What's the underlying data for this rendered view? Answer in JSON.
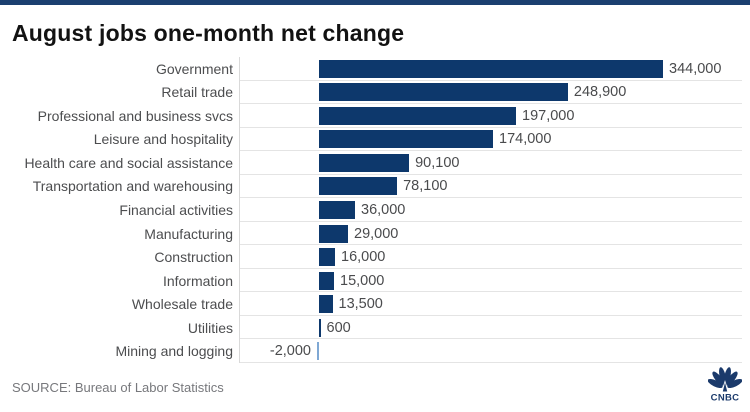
{
  "title": "August jobs one-month net change",
  "footer": {
    "source": "SOURCE: Bureau of Labor Statistics",
    "logo_text": "CNBC"
  },
  "icons": {
    "cnbc_logo": "cnbc-peacock-icon"
  },
  "colors": {
    "accent_navy": "#1b3f70",
    "bar_navy": "#0d386c",
    "negative_bar_blue": "#7fa8d4",
    "label_gray": "#4c4d4f",
    "grid_gray": "#e4e4e4",
    "source_gray": "#77787c"
  },
  "chart_data": {
    "type": "bar",
    "orientation": "horizontal",
    "title": "August jobs one-month net change",
    "categories": [
      "Government",
      "Retail trade",
      "Professional and business svcs",
      "Leisure and hospitality",
      "Health care and social assistance",
      "Transportation and warehousing",
      "Financial activities",
      "Manufacturing",
      "Construction",
      "Information",
      "Wholesale trade",
      "Utilities",
      "Mining and logging"
    ],
    "values": [
      344000,
      248900,
      197000,
      174000,
      90100,
      78100,
      36000,
      29000,
      16000,
      15000,
      13500,
      600,
      -2000
    ],
    "value_labels": [
      "344,000",
      "248,900",
      "197,000",
      "174,000",
      "90,100",
      "78,100",
      "36,000",
      "29,000",
      "16,000",
      "15,000",
      "13,500",
      "600",
      "-2,000"
    ],
    "xlim": [
      -79000,
      423000
    ],
    "grid": "row-separators",
    "legend": "none",
    "bar_color": "#0d386c",
    "negative_bar_color": "#7fa8d4",
    "value_label_color": "#4a4b4d"
  }
}
